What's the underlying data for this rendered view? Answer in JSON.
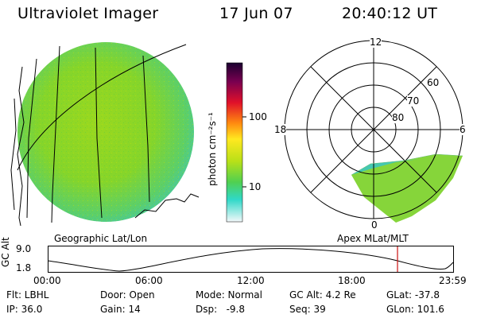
{
  "header": {
    "title": "Ultraviolet Imager",
    "date": "17 Jun 07",
    "time": "20:40:12 UT"
  },
  "colorbar": {
    "unit_label": "photon cm⁻²s⁻¹",
    "ticks": [
      "100",
      "10"
    ]
  },
  "geo_panel": {
    "label": "Geographic Lat/Lon"
  },
  "polar_panel": {
    "label": "Apex MLat/MLT",
    "mlt_labels": {
      "top": "12",
      "left": "18",
      "right": "6",
      "bottom": "0"
    },
    "lat_labels": [
      "60",
      "70",
      "80"
    ]
  },
  "altitude_strip": {
    "ylabel": "GC Alt",
    "ymax": "9.0",
    "ymin": "1.8",
    "x_ticks": [
      "00:00",
      "06:00",
      "12:00",
      "18:00",
      "23:59"
    ]
  },
  "status": {
    "filter": "Flt: LBHL",
    "ip": "IP: 36.0",
    "door": "Door: Open",
    "gain": "Gain: 14",
    "mode": "Mode: Normal",
    "dsp": "Dsp:   -9.8",
    "gc_alt": "GC Alt: 4.2 Re",
    "seq": "Seq: 39",
    "glat": "GLat: -37.8",
    "glon": "GLon: 101.6"
  },
  "colors": {
    "image_fill": "#8cd81c",
    "current_marker": "#cc1111"
  }
}
